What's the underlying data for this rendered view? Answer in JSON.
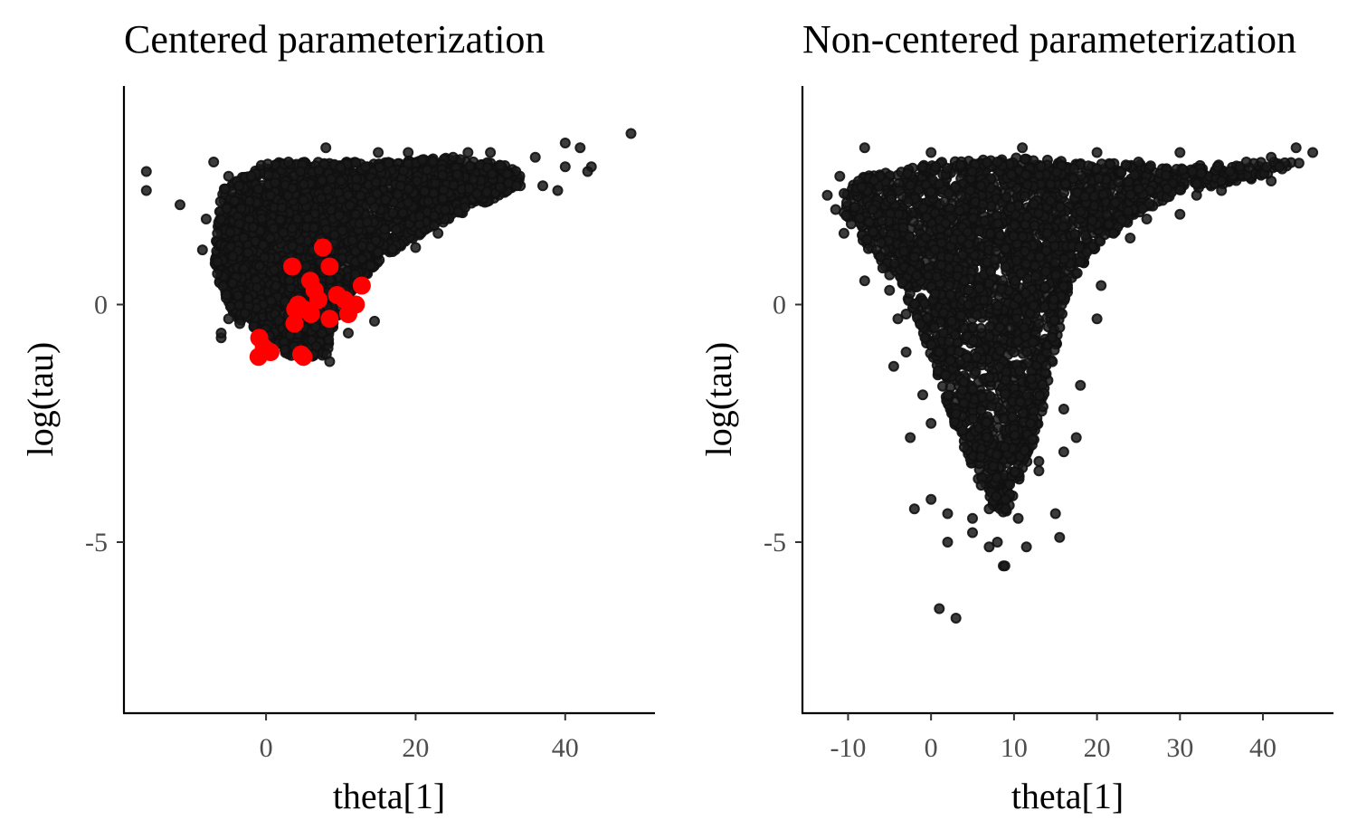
{
  "chart_data": [
    {
      "type": "scatter",
      "title": "Centered parameterization",
      "xlabel": "theta[1]",
      "ylabel": "log(tau)",
      "xlim": [
        -19,
        52
      ],
      "ylim": [
        -8.6,
        4.6
      ],
      "xticks": [
        0,
        20,
        40
      ],
      "yticks": [
        0,
        -5
      ],
      "xtick_labels": [
        "0",
        "20",
        "40"
      ],
      "ytick_labels": [
        "0",
        "-5"
      ],
      "grid": false,
      "legend": "none",
      "colors": {
        "main": "#1a1a1a",
        "highlight": "#ff0000"
      },
      "series": [
        {
          "color": "#1a1a1a",
          "outline": [
            [
              -7,
              1.0
            ],
            [
              -6,
              2.4
            ],
            [
              0,
              3.0
            ],
            [
              15,
              3.0
            ],
            [
              25,
              3.1
            ],
            [
              34,
              2.9
            ],
            [
              34,
              2.5
            ],
            [
              26,
              1.9
            ],
            [
              20,
              1.4
            ],
            [
              15,
              0.9
            ],
            [
              11,
              0.2
            ],
            [
              9,
              -0.5
            ],
            [
              8,
              -1.1
            ],
            [
              3,
              -1.1
            ],
            [
              0,
              -0.6
            ],
            [
              -4,
              -0.3
            ],
            [
              -6,
              0.3
            ]
          ],
          "count": 2800,
          "points": [
            [
              48.8,
              3.6
            ],
            [
              -16,
              2.8
            ],
            [
              -16,
              2.4
            ],
            [
              -11.5,
              2.1
            ],
            [
              -8,
              1.8
            ],
            [
              -8.5,
              1.15
            ],
            [
              -6.5,
              1.5
            ],
            [
              -7,
              3.0
            ],
            [
              -6.5,
              0.9
            ],
            [
              -6.5,
              0.65
            ],
            [
              -5,
              -0.3
            ],
            [
              -6,
              -0.7
            ],
            [
              -6,
              -0.6
            ],
            [
              -3.5,
              -0.4
            ],
            [
              40,
              3.4
            ],
            [
              42,
              3.3
            ],
            [
              43.5,
              2.9
            ],
            [
              43,
              2.8
            ],
            [
              39,
              2.4
            ],
            [
              40,
              2.9
            ],
            [
              36,
              3.1
            ],
            [
              30,
              3.2
            ],
            [
              27,
              3.2
            ],
            [
              25,
              3.1
            ],
            [
              37,
              2.5
            ],
            [
              34,
              2.5
            ],
            [
              33.5,
              2.5
            ],
            [
              19,
              3.2
            ],
            [
              15,
              3.2
            ],
            [
              8,
              3.3
            ],
            [
              3,
              3.0
            ],
            [
              -2,
              2.7
            ],
            [
              -5,
              2.7
            ],
            [
              23,
              1.5
            ],
            [
              20,
              1.2
            ],
            [
              15,
              1.1
            ],
            [
              11,
              -0.6
            ],
            [
              14.5,
              -0.35
            ],
            [
              8.5,
              -1.2
            ],
            [
              7.5,
              -0.6
            ],
            [
              18,
              2.5
            ],
            [
              10,
              2.6
            ],
            [
              5,
              2.2
            ],
            [
              12,
              1.9
            ],
            [
              1,
              1.6
            ]
          ]
        },
        {
          "color": "#ff0000",
          "points": [
            [
              7.6,
              1.2
            ],
            [
              3.5,
              0.8
            ],
            [
              8.5,
              0.8
            ],
            [
              5.9,
              0.5
            ],
            [
              12.8,
              0.4
            ],
            [
              4.3,
              0.0
            ],
            [
              6.5,
              0.3
            ],
            [
              7,
              0.1
            ],
            [
              9.5,
              0.2
            ],
            [
              5.1,
              -0.1
            ],
            [
              3.8,
              -0.4
            ],
            [
              6,
              -0.2
            ],
            [
              12.0,
              0.0
            ],
            [
              11.0,
              -0.2
            ],
            [
              8.5,
              -0.3
            ],
            [
              3.9,
              -0.1
            ],
            [
              -0.9,
              -0.7
            ],
            [
              -0.3,
              -0.9
            ],
            [
              -1,
              -1.1
            ],
            [
              0.6,
              -1.0
            ],
            [
              4.7,
              -1.05
            ],
            [
              5,
              -1.1
            ],
            [
              10.5,
              0.1
            ]
          ]
        }
      ]
    },
    {
      "type": "scatter",
      "title": "Non-centered parameterization",
      "xlabel": "theta[1]",
      "ylabel": "log(tau)",
      "xlim": [
        -15.5,
        48.5
      ],
      "ylim": [
        -8.6,
        4.6
      ],
      "xticks": [
        -10,
        0,
        10,
        20,
        30,
        40
      ],
      "yticks": [
        0,
        -5
      ],
      "xtick_labels": [
        "-10",
        "0",
        "10",
        "20",
        "30",
        "40"
      ],
      "ytick_labels": [
        "0",
        "-5"
      ],
      "grid": false,
      "legend": "none",
      "colors": {
        "main": "#1a1a1a"
      },
      "series": [
        {
          "color": "#1a1a1a",
          "outline": [
            [
              -11,
              2.3
            ],
            [
              -8,
              2.7
            ],
            [
              0,
              3.0
            ],
            [
              10,
              3.1
            ],
            [
              20,
              3.0
            ],
            [
              30,
              2.9
            ],
            [
              38,
              3.0
            ],
            [
              45,
              3.0
            ],
            [
              38,
              2.6
            ],
            [
              30,
              2.4
            ],
            [
              26,
              2.0
            ],
            [
              22,
              1.5
            ],
            [
              18,
              0.8
            ],
            [
              16,
              0.0
            ],
            [
              15,
              -1.0
            ],
            [
              14,
              -1.7
            ],
            [
              13,
              -2.6
            ],
            [
              11,
              -3.6
            ],
            [
              9,
              -4.4
            ],
            [
              7,
              -4.2
            ],
            [
              5,
              -3.4
            ],
            [
              3,
              -2.6
            ],
            [
              1,
              -1.6
            ],
            [
              -1,
              -0.6
            ],
            [
              -3,
              0.2
            ],
            [
              -6,
              0.8
            ],
            [
              -9,
              1.5
            ],
            [
              -11,
              2.0
            ]
          ],
          "count": 2800,
          "points": [
            [
              -11,
              2.7
            ],
            [
              -12.5,
              2.3
            ],
            [
              -11.5,
              2.0
            ],
            [
              -10.5,
              1.5
            ],
            [
              -8,
              3.3
            ],
            [
              -7,
              2.0
            ],
            [
              -6,
              1.3
            ],
            [
              -8,
              0.5
            ],
            [
              -5,
              0.3
            ],
            [
              -4,
              -0.3
            ],
            [
              -3,
              -0.2
            ],
            [
              -3,
              -1.0
            ],
            [
              -4.5,
              -1.3
            ],
            [
              0,
              -2.5
            ],
            [
              -2.5,
              -2.8
            ],
            [
              -2,
              -4.3
            ],
            [
              1,
              -1.0
            ],
            [
              -1,
              -1.9
            ],
            [
              7.5,
              -3.4
            ],
            [
              9.5,
              -4.0
            ],
            [
              9,
              -4.1
            ],
            [
              9,
              -4.3
            ],
            [
              7,
              -4.3
            ],
            [
              5,
              -4.5
            ],
            [
              5,
              -4.8
            ],
            [
              2,
              -4.4
            ],
            [
              0,
              -4.1
            ],
            [
              2,
              -5.0
            ],
            [
              7,
              -5.1
            ],
            [
              8,
              -5.0
            ],
            [
              11.5,
              -5.1
            ],
            [
              15.5,
              -4.9
            ],
            [
              15,
              -4.4
            ],
            [
              8.7,
              -5.5
            ],
            [
              8.9,
              -5.5
            ],
            [
              1,
              -6.4
            ],
            [
              3,
              -6.6
            ],
            [
              10.5,
              -4.5
            ],
            [
              13,
              -3.5
            ],
            [
              13,
              -3.3
            ],
            [
              18,
              -1.7
            ],
            [
              16,
              -2.2
            ],
            [
              17.5,
              -2.8
            ],
            [
              16,
              -3.1
            ],
            [
              20,
              -0.3
            ],
            [
              20.5,
              0.4
            ],
            [
              18,
              0.9
            ],
            [
              22,
              1.5
            ],
            [
              24,
              1.4
            ],
            [
              26,
              1.8
            ],
            [
              30,
              1.9
            ],
            [
              32,
              2.3
            ],
            [
              31.5,
              2.8
            ],
            [
              35,
              2.4
            ],
            [
              36,
              2.8
            ],
            [
              38,
              3.0
            ],
            [
              41,
              3.1
            ],
            [
              42,
              2.9
            ],
            [
              44,
              3.3
            ],
            [
              46,
              3.2
            ],
            [
              41,
              2.6
            ],
            [
              35,
              2.6
            ],
            [
              30,
              3.2
            ],
            [
              25,
              3.0
            ],
            [
              20,
              3.2
            ],
            [
              11,
              3.3
            ],
            [
              0,
              3.2
            ],
            [
              -1,
              2.9
            ],
            [
              6,
              2.5
            ],
            [
              8,
              3.0
            ],
            [
              14,
              1.5
            ],
            [
              4,
              0.5
            ],
            [
              -2,
              1.0
            ],
            [
              3,
              -2.3
            ],
            [
              6,
              -0.5
            ],
            [
              10,
              -1.0
            ],
            [
              12,
              -2.5
            ],
            [
              4,
              -3.0
            ],
            [
              6,
              -3.2
            ]
          ]
        }
      ]
    }
  ]
}
